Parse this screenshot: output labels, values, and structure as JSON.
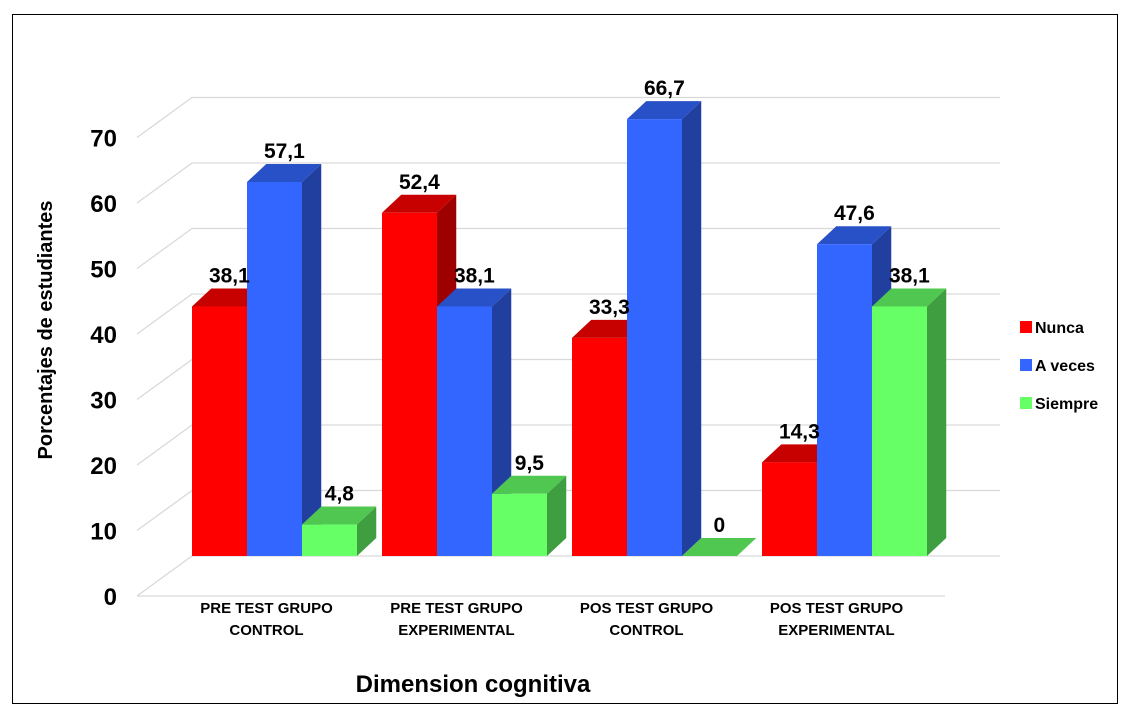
{
  "chart_data": {
    "type": "bar",
    "xlabel": "Dimension cognitiva",
    "ylabel": "Porcentajes de estudiantes",
    "ylim": [
      0,
      70
    ],
    "yticks": [
      "0",
      "10",
      "20",
      "30",
      "40",
      "50",
      "60",
      "70"
    ],
    "grid": true,
    "legend_position": "right",
    "categories": [
      [
        "PRE TEST GRUPO",
        "CONTROL"
      ],
      [
        "PRE TEST GRUPO",
        "EXPERIMENTAL"
      ],
      [
        "POS TEST GRUPO",
        "CONTROL"
      ],
      [
        "POS TEST GRUPO",
        "EXPERIMENTAL"
      ]
    ],
    "series": [
      {
        "name": "Nunca",
        "color": "#ff0000",
        "values": [
          38.1,
          52.4,
          33.3,
          14.3
        ],
        "labels": [
          "38,1",
          "52,4",
          "33,3",
          "14,3"
        ]
      },
      {
        "name": "A veces",
        "color": "#3366ff",
        "values": [
          57.1,
          38.1,
          66.7,
          47.6
        ],
        "labels": [
          "57,1",
          "38,1",
          "66,7",
          "47,6"
        ]
      },
      {
        "name": "Siempre",
        "color": "#66ff66",
        "values": [
          4.8,
          9.5,
          0,
          38.1
        ],
        "labels": [
          "4,8",
          "9,5",
          "0",
          "38,1"
        ]
      }
    ]
  }
}
